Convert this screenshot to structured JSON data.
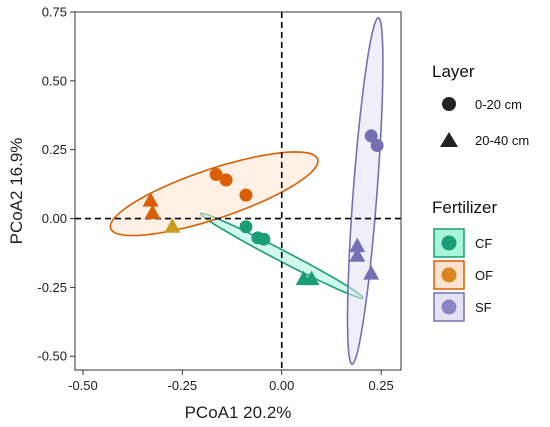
{
  "chart_data": {
    "type": "scatter",
    "xlabel": "PCoA1 20.2%",
    "ylabel": "PCoA2 16.9%",
    "xlim": [
      -0.52,
      0.3
    ],
    "ylim": [
      -0.55,
      0.75
    ],
    "xticks": [
      -0.5,
      -0.25,
      0.0,
      0.25
    ],
    "xtick_labels": [
      "-0.50",
      "-0.25",
      "0.00",
      "0.25"
    ],
    "yticks": [
      -0.5,
      -0.25,
      0.0,
      0.25,
      0.5,
      0.75
    ],
    "ytick_labels": [
      "-0.50",
      "-0.25",
      "0.00",
      "0.25",
      "0.50",
      "0.75"
    ],
    "reference_lines": {
      "x": 0,
      "y": 0,
      "style": "dashed"
    },
    "grid": false,
    "legend_placement": "right",
    "colors": {
      "CF": "#1b9e77",
      "OF": "#d95f02",
      "SF": "#7570b3",
      "OF_triangle": "#c89a1e"
    },
    "shape_legend": {
      "title": "Layer",
      "items": [
        {
          "label": "0-20 cm",
          "shape": "circle"
        },
        {
          "label": "20-40 cm",
          "shape": "triangle"
        }
      ]
    },
    "color_legend": {
      "title": "Fertilizer",
      "items": [
        {
          "label": "CF",
          "color": "#1b9e77",
          "fill": "#a8f5dc"
        },
        {
          "label": "OF",
          "color": "#d95f02",
          "fill": "#fde3cf"
        },
        {
          "label": "SF",
          "color": "#7570b3",
          "fill": "#e4e2f4"
        }
      ]
    },
    "series": [
      {
        "name": "CF",
        "points": [
          {
            "x": -0.09,
            "y": -0.03,
            "layer": "0-20 cm"
          },
          {
            "x": -0.06,
            "y": -0.07,
            "layer": "0-20 cm"
          },
          {
            "x": -0.045,
            "y": -0.075,
            "layer": "0-20 cm"
          },
          {
            "x": 0.055,
            "y": -0.22,
            "layer": "20-40 cm"
          },
          {
            "x": 0.075,
            "y": -0.22,
            "layer": "20-40 cm"
          }
        ]
      },
      {
        "name": "OF",
        "points": [
          {
            "x": -0.165,
            "y": 0.16,
            "layer": "0-20 cm"
          },
          {
            "x": -0.14,
            "y": 0.14,
            "layer": "0-20 cm"
          },
          {
            "x": -0.09,
            "y": 0.085,
            "layer": "0-20 cm"
          },
          {
            "x": -0.33,
            "y": 0.065,
            "layer": "20-40 cm"
          },
          {
            "x": -0.325,
            "y": 0.02,
            "layer": "20-40 cm"
          },
          {
            "x": -0.275,
            "y": -0.03,
            "layer": "20-40 cm"
          }
        ]
      },
      {
        "name": "SF",
        "points": [
          {
            "x": 0.225,
            "y": 0.3,
            "layer": "0-20 cm"
          },
          {
            "x": 0.24,
            "y": 0.265,
            "layer": "0-20 cm"
          },
          {
            "x": 0.19,
            "y": -0.1,
            "layer": "20-40 cm"
          },
          {
            "x": 0.19,
            "y": -0.135,
            "layer": "20-40 cm"
          },
          {
            "x": 0.225,
            "y": -0.2,
            "layer": "20-40 cm"
          }
        ]
      }
    ],
    "ellipses": [
      {
        "name": "CF",
        "cx": 0.0,
        "cy": -0.135,
        "rx": 0.255,
        "ry": 0.018,
        "angle_deg": -37
      },
      {
        "name": "OF",
        "cx": -0.17,
        "cy": 0.09,
        "rx": 0.29,
        "ry": 0.085,
        "angle_deg": 27
      },
      {
        "name": "SF",
        "cx": 0.21,
        "cy": 0.1,
        "rx": 0.63,
        "ry": 0.03,
        "angle_deg": 87
      }
    ]
  }
}
